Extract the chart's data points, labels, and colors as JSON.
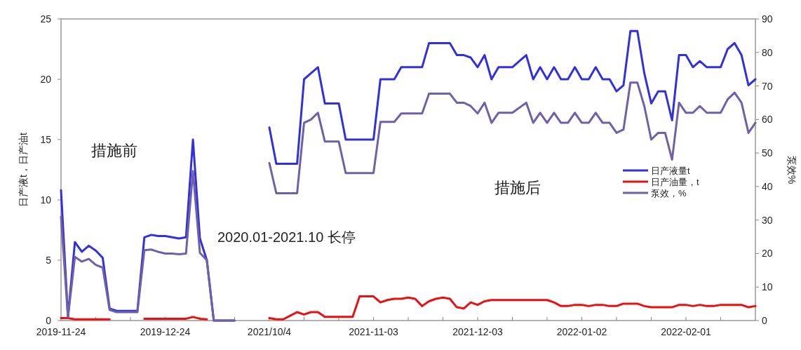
{
  "chart_data": {
    "type": "line",
    "categories": [
      "2019-11-24",
      null,
      null,
      null,
      null,
      null,
      null,
      null,
      null,
      null,
      null,
      null,
      null,
      null,
      null,
      "2019-12-24",
      null,
      null,
      null,
      null,
      null,
      null,
      null,
      null,
      null,
      null,
      null,
      null,
      null,
      null,
      "2021/10/4",
      null,
      null,
      null,
      null,
      null,
      null,
      null,
      null,
      null,
      null,
      null,
      null,
      null,
      null,
      "2021-11-03",
      null,
      null,
      null,
      null,
      null,
      null,
      null,
      null,
      null,
      null,
      null,
      null,
      null,
      null,
      "2021-12-03",
      null,
      null,
      null,
      null,
      null,
      null,
      null,
      null,
      null,
      null,
      null,
      null,
      null,
      null,
      "2022-01-02",
      null,
      null,
      null,
      null,
      null,
      null,
      null,
      null,
      null,
      null,
      null,
      null,
      null,
      null,
      "2022-02-01",
      null,
      null,
      null,
      null,
      null,
      null,
      null,
      null,
      null,
      null
    ],
    "ylabel": "日产液t，日产油t",
    "y2label": "泵效%",
    "ylim": [
      0,
      25
    ],
    "yticks": [
      0,
      5,
      10,
      15,
      20,
      25
    ],
    "y2lim": [
      0,
      90
    ],
    "y2ticks": [
      0,
      10,
      20,
      30,
      40,
      50,
      60,
      70,
      80,
      90
    ],
    "legend": "right",
    "marker": "none",
    "line_style": "solid",
    "annotations": [
      "措施前",
      "措施后",
      "2020.01-2021.10 长停"
    ],
    "series": [
      {
        "name": "日产液量t",
        "color": "#3030e0",
        "values": [
          10.8,
          0.3,
          6.5,
          5.7,
          6.2,
          5.8,
          5.2,
          1.0,
          0.8,
          0.8,
          0.8,
          0.8,
          6.9,
          7.1,
          7.0,
          7.0,
          6.9,
          6.8,
          6.9,
          15,
          6.8,
          5,
          0,
          0,
          0,
          0,
          null,
          null,
          null,
          null,
          16,
          13,
          13,
          13,
          13,
          20,
          20.5,
          21,
          18,
          18,
          18,
          15,
          15,
          15,
          15,
          15,
          20,
          20,
          20,
          21,
          21,
          21,
          21,
          23,
          23,
          23,
          23,
          22,
          22,
          21.8,
          21,
          22,
          20,
          21,
          21,
          21,
          21.5,
          22,
          20,
          21,
          20,
          21,
          20,
          20,
          21,
          20,
          20,
          21,
          20,
          20,
          19,
          19.5,
          24,
          24,
          20.5,
          18,
          19,
          19,
          16.6,
          22,
          22,
          21,
          21.5,
          21,
          21,
          21,
          22.5,
          23,
          22,
          19.5,
          20
        ]
      },
      {
        "name": "日产油量，t",
        "color": "#e81010",
        "values": [
          0.2,
          0.2,
          0.1,
          0.1,
          0.1,
          0.1,
          0.1,
          0.1,
          null,
          null,
          null,
          null,
          0.15,
          0.15,
          0.15,
          0.15,
          0.15,
          0.15,
          0.15,
          0.3,
          0.15,
          0.1,
          null,
          null,
          null,
          null,
          null,
          null,
          null,
          null,
          0.2,
          0.1,
          0.1,
          0.4,
          0.7,
          0.5,
          0.7,
          0.7,
          0.3,
          0.3,
          0.3,
          0.3,
          0.3,
          2.0,
          2.0,
          2.0,
          1.5,
          1.7,
          1.8,
          1.8,
          1.9,
          1.8,
          1.2,
          1.6,
          1.8,
          1.9,
          1.8,
          1.1,
          1.0,
          1.5,
          1.3,
          1.6,
          1.7,
          1.7,
          1.7,
          1.7,
          1.7,
          1.7,
          1.7,
          1.7,
          1.7,
          1.5,
          1.2,
          1.2,
          1.3,
          1.3,
          1.2,
          1.3,
          1.3,
          1.2,
          1.2,
          1.4,
          1.4,
          1.4,
          1.2,
          1.1,
          1.1,
          1.1,
          1.1,
          1.3,
          1.3,
          1.2,
          1.3,
          1.2,
          1.2,
          1.3,
          1.3,
          1.3,
          1.3,
          1.1,
          1.2
        ]
      },
      {
        "name": "泵效，%",
        "color": "#7060a8",
        "axis": "y2",
        "values": [
          31,
          1,
          19,
          17.6,
          18.4,
          16.6,
          15.8,
          3.2,
          2.5,
          2.5,
          2.5,
          2.5,
          21,
          21.2,
          20.5,
          20,
          20,
          19.8,
          20,
          44.6,
          20.2,
          18,
          0,
          0,
          0,
          0,
          null,
          null,
          null,
          null,
          47,
          38,
          38,
          38,
          38,
          59,
          60,
          62,
          53.4,
          53.4,
          53.4,
          44,
          44,
          44,
          44,
          44,
          59.3,
          59.3,
          59.3,
          61.8,
          61.8,
          61.8,
          61.8,
          67.7,
          67.7,
          67.7,
          67.7,
          65,
          65,
          64,
          61.8,
          65,
          59,
          62,
          62,
          62,
          63.5,
          65,
          59,
          62,
          59,
          62,
          59,
          59,
          62,
          59,
          59,
          62,
          59,
          59,
          56,
          57,
          71,
          71,
          64,
          54,
          56,
          56,
          48,
          65,
          62,
          62,
          64,
          62,
          62,
          62,
          66,
          68,
          65,
          56,
          59
        ]
      }
    ]
  }
}
